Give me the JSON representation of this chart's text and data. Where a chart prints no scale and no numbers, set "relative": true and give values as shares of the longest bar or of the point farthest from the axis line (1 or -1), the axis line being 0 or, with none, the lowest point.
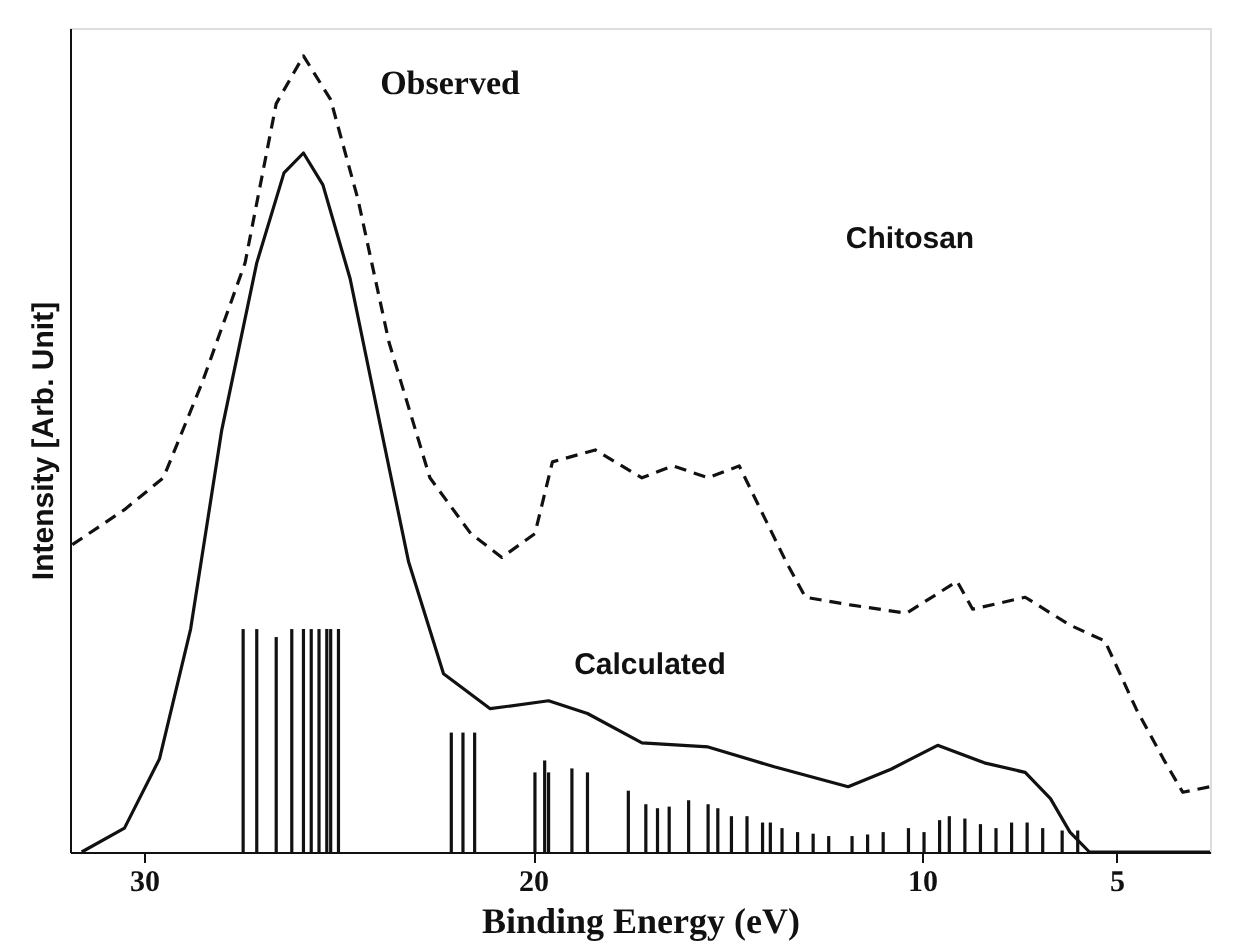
{
  "chart_data": {
    "type": "line",
    "relative": true,
    "xlabel": "Binding Energy (eV)",
    "ylabel": "Intensity [Arb. Unit]",
    "xlim": [
      31.9,
      2.6
    ],
    "xticks": [
      30,
      20,
      10,
      5
    ],
    "grid": false,
    "annotations": [
      "Observed",
      "Calculated",
      "Chitosan"
    ],
    "series": [
      {
        "line_style": "dashed",
        "color": "#111111",
        "x": [
          31.84,
          30.5,
          29.5,
          28.5,
          27.4,
          26.6,
          25.9,
          25.2,
          24.5,
          23.7,
          22.65,
          21.6,
          20.8,
          19.95,
          19.5,
          18.4,
          17.2,
          16.4,
          15.5,
          14.7,
          14.0,
          13.5,
          13.0,
          11.8,
          10.4,
          9.1,
          8.7,
          7.35,
          6.2,
          5.3,
          4.5,
          3.8,
          3.3,
          2.6
        ],
        "values": [
          0.386,
          0.43,
          0.47,
          0.59,
          0.74,
          0.94,
          1.0,
          0.945,
          0.82,
          0.64,
          0.47,
          0.4,
          0.37,
          0.4,
          0.49,
          0.505,
          0.47,
          0.485,
          0.47,
          0.485,
          0.415,
          0.365,
          0.32,
          0.31,
          0.3,
          0.34,
          0.305,
          0.32,
          0.285,
          0.265,
          0.18,
          0.117,
          0.075,
          0.082
        ]
      },
      {
        "line_style": "solid",
        "color": "#111111",
        "x": [
          31.6,
          30.5,
          29.6,
          28.8,
          28.0,
          27.1,
          26.4,
          25.9,
          25.4,
          24.7,
          23.9,
          23.2,
          22.3,
          21.1,
          19.6,
          18.6,
          17.2,
          15.5,
          13.8,
          11.9,
          10.8,
          9.6,
          8.4,
          7.35,
          6.7,
          6.2,
          5.7,
          2.6
        ],
        "values": [
          0.0,
          0.03,
          0.117,
          0.28,
          0.53,
          0.74,
          0.853,
          0.878,
          0.838,
          0.72,
          0.53,
          0.365,
          0.224,
          0.18,
          0.19,
          0.174,
          0.137,
          0.132,
          0.107,
          0.082,
          0.104,
          0.134,
          0.112,
          0.1,
          0.067,
          0.025,
          0.0,
          0.0
        ]
      },
      {
        "type": "bar",
        "color": "#111111",
        "x": [
          27.45,
          27.1,
          26.6,
          26.2,
          25.9,
          25.7,
          25.5,
          25.3,
          25.2,
          25.0,
          22.1,
          21.8,
          21.5,
          19.95,
          19.7,
          19.6,
          19.0,
          18.6,
          17.55,
          17.1,
          16.8,
          16.5,
          16.0,
          15.5,
          15.25,
          14.9,
          14.5,
          14.1,
          13.9,
          13.6,
          13.2,
          12.8,
          12.4,
          11.8,
          11.4,
          11.0,
          10.35,
          9.95,
          9.55,
          9.3,
          8.9,
          8.5,
          8.1,
          7.7,
          7.3,
          6.9,
          6.4,
          6.0
        ],
        "values": [
          0.28,
          0.28,
          0.27,
          0.28,
          0.28,
          0.28,
          0.28,
          0.28,
          0.28,
          0.28,
          0.15,
          0.15,
          0.15,
          0.1,
          0.115,
          0.1,
          0.105,
          0.1,
          0.077,
          0.06,
          0.055,
          0.057,
          0.065,
          0.06,
          0.055,
          0.045,
          0.045,
          0.037,
          0.037,
          0.03,
          0.025,
          0.023,
          0.02,
          0.02,
          0.022,
          0.025,
          0.03,
          0.025,
          0.04,
          0.045,
          0.042,
          0.035,
          0.03,
          0.037,
          0.037,
          0.03,
          0.027,
          0.027
        ]
      }
    ]
  }
}
